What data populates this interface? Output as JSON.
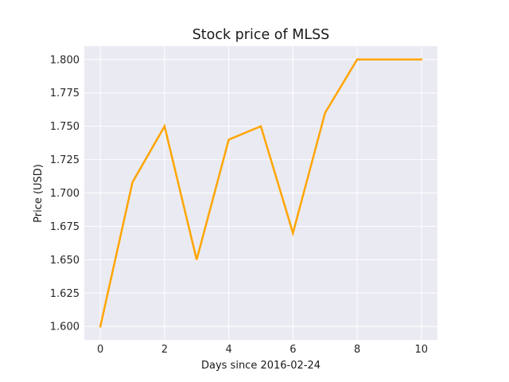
{
  "chart_data": {
    "type": "line",
    "title": "Stock price of MLSS",
    "xlabel": "Days since 2016-02-24",
    "ylabel": "Price (USD)",
    "x": [
      0,
      1,
      2,
      3,
      4,
      5,
      6,
      7,
      8,
      9,
      10
    ],
    "series": [
      {
        "values": [
          1.6,
          1.708,
          1.75,
          1.65,
          1.74,
          1.75,
          1.67,
          1.76,
          1.8,
          1.8,
          1.8
        ]
      }
    ],
    "xlim": [
      -0.5,
      10.5
    ],
    "ylim": [
      1.59,
      1.81
    ],
    "xticks": [
      0,
      2,
      4,
      6,
      8,
      10
    ],
    "yticks": [
      1.6,
      1.625,
      1.65,
      1.675,
      1.7,
      1.725,
      1.75,
      1.775,
      1.8
    ],
    "ytick_format_decimals": 3,
    "grid": true,
    "colors": {
      "line": "#ffa500",
      "background": "#eaeaf2",
      "grid": "#ffffff"
    }
  }
}
